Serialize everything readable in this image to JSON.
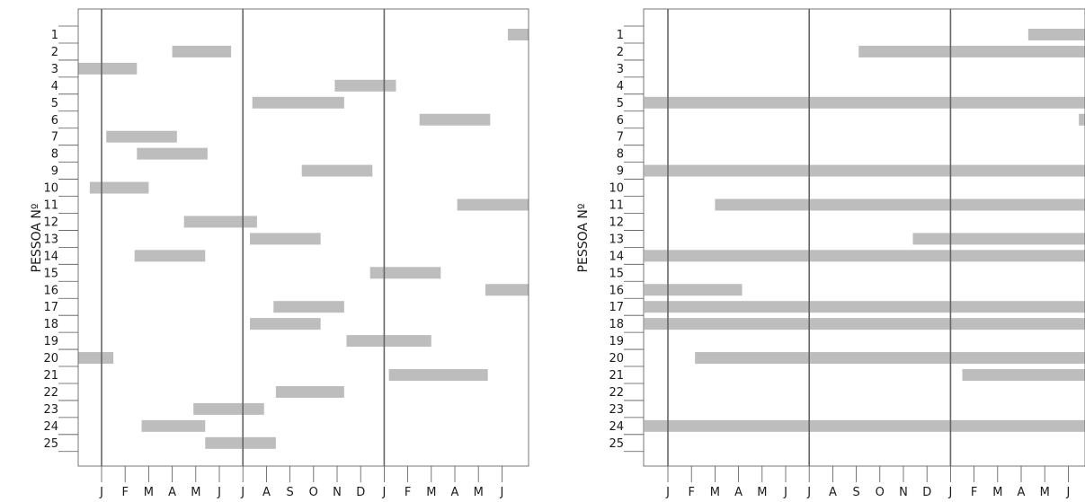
{
  "chart_data": [
    {
      "type": "gantt",
      "ylabel": "PESSOA Nº",
      "categories": [
        "1",
        "2",
        "3",
        "4",
        "5",
        "6",
        "7",
        "8",
        "9",
        "10",
        "11",
        "12",
        "13",
        "14",
        "15",
        "16",
        "17",
        "18",
        "19",
        "20",
        "21",
        "22",
        "23",
        "24",
        "25"
      ],
      "xtick_labels": [
        "J",
        "F",
        "M",
        "A",
        "M",
        "J",
        "J",
        "A",
        "S",
        "O",
        "N",
        "D",
        "J",
        "F",
        "M",
        "A",
        "M",
        "J"
      ],
      "xlim": [
        -1,
        18.25
      ],
      "year_lines": [
        0,
        6,
        12
      ],
      "grid": false,
      "bars": [
        {
          "person": "1",
          "start": 17.25,
          "end": 18.25
        },
        {
          "person": "2",
          "start": 3.0,
          "end": 5.5
        },
        {
          "person": "3",
          "start": -1.0,
          "end": 1.5
        },
        {
          "person": "4",
          "start": 9.9,
          "end": 12.5
        },
        {
          "person": "5",
          "start": 6.4,
          "end": 10.3
        },
        {
          "person": "6",
          "start": 13.5,
          "end": 16.5
        },
        {
          "person": "7",
          "start": 0.2,
          "end": 3.2
        },
        {
          "person": "8",
          "start": 1.5,
          "end": 4.5
        },
        {
          "person": "9",
          "start": 8.5,
          "end": 11.5
        },
        {
          "person": "10",
          "start": -0.5,
          "end": 2.0
        },
        {
          "person": "11",
          "start": 15.1,
          "end": 18.25
        },
        {
          "person": "12",
          "start": 3.5,
          "end": 6.6
        },
        {
          "person": "13",
          "start": 6.3,
          "end": 9.3
        },
        {
          "person": "14",
          "start": 1.4,
          "end": 4.4
        },
        {
          "person": "15",
          "start": 11.4,
          "end": 14.4
        },
        {
          "person": "16",
          "start": 16.3,
          "end": 18.25
        },
        {
          "person": "17",
          "start": 7.3,
          "end": 10.3
        },
        {
          "person": "18",
          "start": 6.3,
          "end": 9.3
        },
        {
          "person": "19",
          "start": 10.4,
          "end": 14.0
        },
        {
          "person": "20",
          "start": -1.0,
          "end": 0.5
        },
        {
          "person": "21",
          "start": 12.2,
          "end": 16.4
        },
        {
          "person": "22",
          "start": 7.4,
          "end": 10.3
        },
        {
          "person": "23",
          "start": 3.9,
          "end": 6.9
        },
        {
          "person": "24",
          "start": 1.7,
          "end": 4.4
        },
        {
          "person": "25",
          "start": 4.4,
          "end": 7.4
        }
      ]
    },
    {
      "type": "gantt",
      "ylabel": "PESSOA Nº",
      "categories": [
        "1",
        "2",
        "3",
        "4",
        "5",
        "6",
        "7",
        "8",
        "9",
        "10",
        "11",
        "12",
        "13",
        "14",
        "15",
        "16",
        "17",
        "18",
        "19",
        "20",
        "21",
        "22",
        "23",
        "24",
        "25"
      ],
      "xtick_labels": [
        "J",
        "F",
        "M",
        "A",
        "M",
        "J",
        "J",
        "A",
        "S",
        "O",
        "N",
        "D",
        "J",
        "F",
        "M",
        "A",
        "M",
        "J"
      ],
      "xlim": [
        -1,
        17.75
      ],
      "year_lines": [
        0,
        6,
        12
      ],
      "grid": false,
      "bars": [
        {
          "person": "1",
          "start": 15.3,
          "end": 17.75
        },
        {
          "person": "2",
          "start": 8.1,
          "end": 17.75
        },
        {
          "person": "5",
          "start": -1.0,
          "end": 17.75
        },
        {
          "person": "6",
          "start": 17.45,
          "end": 17.75
        },
        {
          "person": "9",
          "start": -1.0,
          "end": 17.75
        },
        {
          "person": "11",
          "start": 2.0,
          "end": 17.75
        },
        {
          "person": "13",
          "start": 10.4,
          "end": 17.75
        },
        {
          "person": "14",
          "start": -1.0,
          "end": 17.75
        },
        {
          "person": "16",
          "start": -1.0,
          "end": 3.15
        },
        {
          "person": "17",
          "start": -1.0,
          "end": 17.75
        },
        {
          "person": "18",
          "start": -1.0,
          "end": 17.75
        },
        {
          "person": "20",
          "start": 1.15,
          "end": 17.75
        },
        {
          "person": "21",
          "start": 12.5,
          "end": 17.75
        },
        {
          "person": "24",
          "start": -1.0,
          "end": 17.75
        }
      ]
    }
  ]
}
